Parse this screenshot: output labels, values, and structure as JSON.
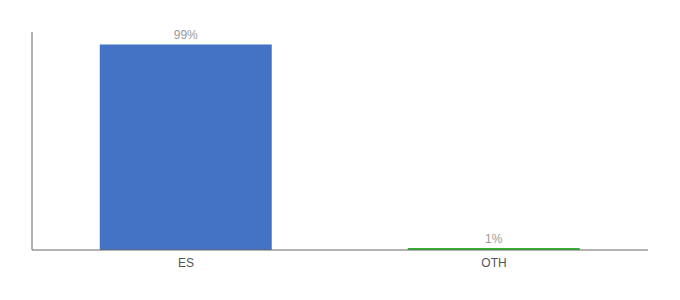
{
  "chart_data": {
    "type": "bar",
    "categories": [
      "ES",
      "OTH"
    ],
    "values": [
      99,
      1
    ],
    "value_labels": [
      "99%",
      "1%"
    ],
    "colors": [
      "#4472c4",
      "#2db52d"
    ],
    "ylim": [
      0,
      105
    ],
    "tick_labels": "x"
  }
}
